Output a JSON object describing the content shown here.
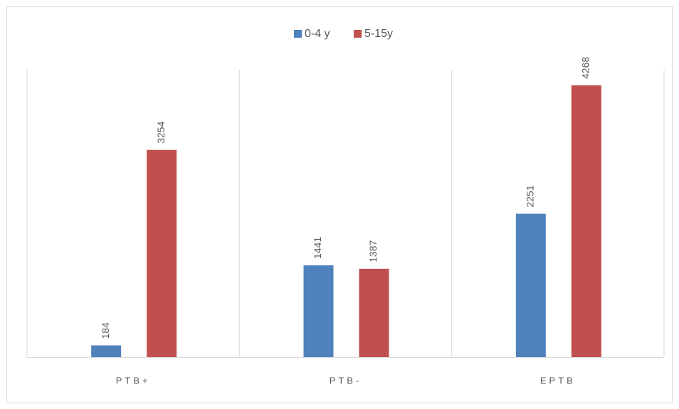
{
  "chart_data": {
    "type": "bar",
    "categories": [
      "PTB+",
      "PTB-",
      "EPTB"
    ],
    "series": [
      {
        "name": "0-4 y",
        "color": "#4f81bd",
        "values": [
          184,
          1441,
          2251
        ]
      },
      {
        "name": "5-15y",
        "color": "#c0504d",
        "values": [
          3254,
          1387,
          4268
        ]
      }
    ],
    "legend": "top",
    "grid": true
  }
}
